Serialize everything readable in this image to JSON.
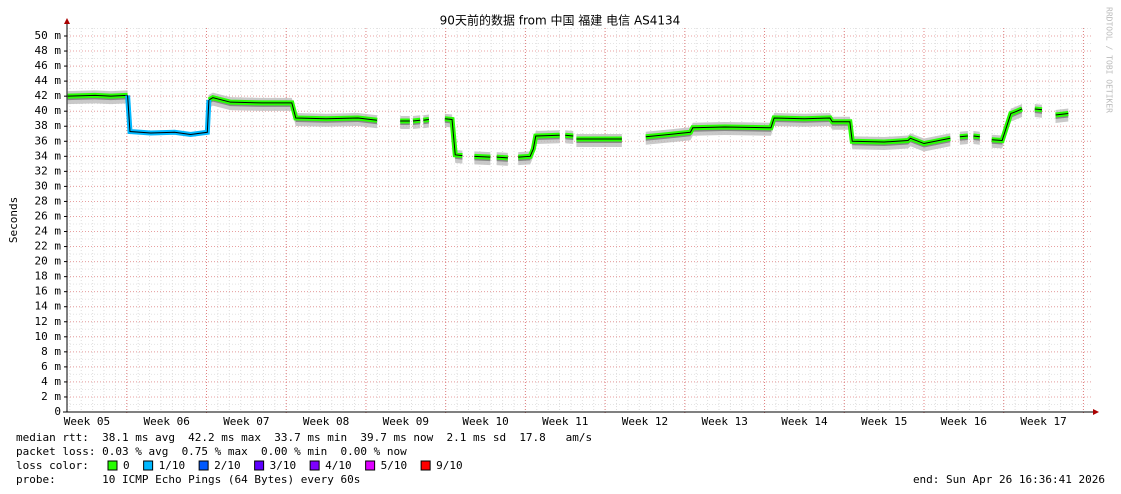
{
  "chart_data": {
    "type": "line",
    "title": "90天前的数据 from 中国 福建 电信 AS4134",
    "y_label": "Seconds",
    "watermark": "RRDTOOL / TOBI OETIKER",
    "xlim": [
      4.75,
      17.62
    ],
    "xticks": [
      {
        "value": 5,
        "label": "Week 05"
      },
      {
        "value": 6,
        "label": "Week 06"
      },
      {
        "value": 7,
        "label": "Week 07"
      },
      {
        "value": 8,
        "label": "Week 08"
      },
      {
        "value": 9,
        "label": "Week 09"
      },
      {
        "value": 10,
        "label": "Week 10"
      },
      {
        "value": 11,
        "label": "Week 11"
      },
      {
        "value": 12,
        "label": "Week 12"
      },
      {
        "value": 13,
        "label": "Week 13"
      },
      {
        "value": 14,
        "label": "Week 14"
      },
      {
        "value": 15,
        "label": "Week 15"
      },
      {
        "value": 16,
        "label": "Week 16"
      },
      {
        "value": 17,
        "label": "Week 17"
      }
    ],
    "ylim": [
      0,
      0.05
    ],
    "yticks": [
      0,
      {
        "value": 0.002,
        "label": "2 m"
      },
      {
        "value": 0.004,
        "label": "4 m"
      },
      {
        "value": 0.006,
        "label": "6 m"
      },
      {
        "value": 0.008,
        "label": "8 m"
      },
      {
        "value": 0.01,
        "label": "10 m"
      },
      {
        "value": 0.012,
        "label": "12 m"
      },
      {
        "value": 0.014,
        "label": "14 m"
      },
      {
        "value": 0.016,
        "label": "16 m"
      },
      {
        "value": 0.018,
        "label": "18 m"
      },
      {
        "value": 0.02,
        "label": "20 m"
      },
      {
        "value": 0.022,
        "label": "22 m"
      },
      {
        "value": 0.024,
        "label": "24 m"
      },
      {
        "value": 0.026,
        "label": "26 m"
      },
      {
        "value": 0.028,
        "label": "28 m"
      },
      {
        "value": 0.03,
        "label": "30 m"
      },
      {
        "value": 0.032,
        "label": "32 m"
      },
      {
        "value": 0.034,
        "label": "34 m"
      },
      {
        "value": 0.036,
        "label": "36 m"
      },
      {
        "value": 0.038,
        "label": "38 m"
      },
      {
        "value": 0.04,
        "label": "40 m"
      },
      {
        "value": 0.042,
        "label": "42 m"
      },
      {
        "value": 0.044,
        "label": "44 m"
      },
      {
        "value": 0.046,
        "label": "46 m"
      },
      {
        "value": 0.048,
        "label": "48 m"
      },
      {
        "value": 0.05,
        "label": "50 m"
      }
    ],
    "grid": true,
    "series": [
      {
        "color": "#26ff00",
        "x": [
          4.76,
          5.1,
          5.3,
          5.51,
          6.0,
          6.53,
          6.58,
          6.8,
          7.2,
          7.57,
          7.62,
          8.0,
          8.4,
          8.64,
          8.8,
          8.93,
          9.05,
          9.07,
          9.09,
          9.18,
          9.2,
          9.22,
          9.29,
          9.4,
          9.49,
          9.58,
          9.62,
          9.71,
          9.8,
          9.86,
          10.06,
          10.1,
          10.14,
          10.28,
          10.35,
          10.41,
          10.56,
          10.6,
          10.63,
          10.93,
          10.96,
          11.0,
          11.1,
          11.12,
          11.14,
          11.71,
          11.9,
          12.01,
          12.3,
          12.57,
          12.6,
          13.0,
          13.58,
          13.62,
          14.0,
          14.32,
          14.35,
          14.57,
          14.6,
          15.0,
          15.3,
          15.33,
          15.5,
          15.83,
          15.9,
          15.95,
          16.05,
          16.08,
          16.12,
          16.2,
          16.28,
          16.35,
          16.48,
          16.59,
          16.62,
          16.73,
          16.8,
          16.89,
          16.98,
          17.05,
          17.15,
          17.31
        ],
        "values": [
          0.042,
          0.0421,
          0.042,
          0.0421,
          null,
          0.0415,
          0.0418,
          0.0412,
          0.0411,
          0.0411,
          0.0391,
          0.039,
          0.0391,
          0.0388,
          null,
          0.0387,
          0.0387,
          null,
          0.0387,
          0.0388,
          null,
          0.0388,
          0.0389,
          null,
          0.039,
          0.0389,
          0.0342,
          0.0341,
          null,
          0.034,
          0.0339,
          null,
          0.0339,
          0.0338,
          null,
          0.0339,
          0.034,
          0.035,
          0.0367,
          0.0368,
          null,
          0.0368,
          0.0367,
          null,
          0.0363,
          0.0363,
          null,
          0.0366,
          0.0369,
          0.0372,
          0.0378,
          0.0379,
          0.0378,
          0.0391,
          0.039,
          0.0391,
          0.0386,
          0.0386,
          0.036,
          0.0359,
          0.0361,
          0.0364,
          0.0357,
          0.0364,
          null,
          0.0366,
          0.0367,
          null,
          0.0367,
          0.0366,
          null,
          0.0362,
          0.0361,
          0.0397,
          0.0398,
          0.0403,
          null,
          0.0403,
          0.0402,
          null,
          0.0395,
          0.0397
        ]
      },
      {
        "color": "#00b8ff",
        "x": [
          5.51,
          5.54,
          5.8,
          6.1,
          6.3,
          6.51,
          6.53
        ],
        "values": [
          0.0421,
          0.0373,
          0.0371,
          0.0372,
          0.0369,
          0.0372,
          0.0415
        ]
      }
    ],
    "footer": {
      "median_rtt": "median rtt:  38.1 ms avg  42.2 ms max  33.7 ms min  39.7 ms now  2.1 ms sd  17.8   am/s",
      "packet_loss": "packet loss: 0.03 % avg  0.75 % max  0.00 % min  0.00 % now",
      "loss_color_label": "loss color:",
      "loss_colors": [
        {
          "name": "0",
          "color": "#26ff00"
        },
        {
          "name": "1/10",
          "color": "#00b8ff"
        },
        {
          "name": "2/10",
          "color": "#0059ff"
        },
        {
          "name": "3/10",
          "color": "#5e00ff"
        },
        {
          "name": "4/10",
          "color": "#7e00ff"
        },
        {
          "name": "5/10",
          "color": "#dd00ff"
        },
        {
          "name": "9/10",
          "color": "#ff0000"
        }
      ],
      "probe": "probe:       10 ICMP Echo Pings (64 Bytes) every 60s",
      "end": "end: Sun Apr 26 16:36:41 2026"
    }
  }
}
